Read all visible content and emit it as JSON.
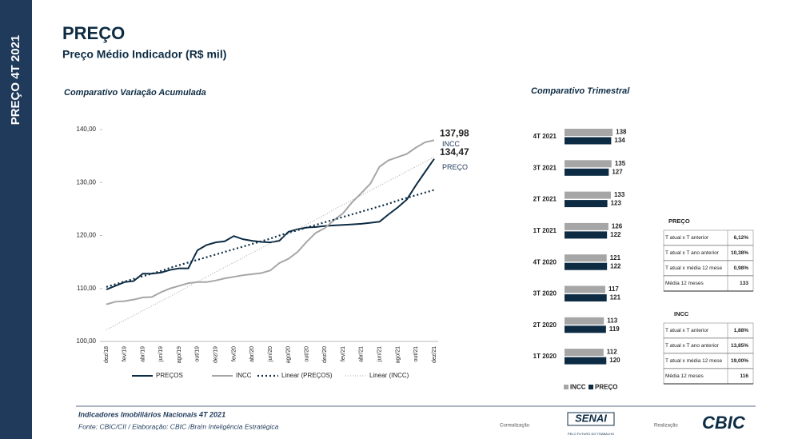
{
  "sidebar": "PREÇO 4T 2021",
  "header": {
    "title": "PREÇO",
    "subtitle": "Preço Médio Indicador (R$ mil)"
  },
  "chart_data": [
    {
      "type": "line",
      "title": "Comparativo Variação Acumulada",
      "categories": [
        "dez/18",
        null,
        "fev/19",
        null,
        "abr/19",
        null,
        "jun/19",
        null,
        "ago/19",
        null,
        "out/19",
        null,
        "dez/19",
        null,
        "fev/20",
        null,
        "abr/20",
        null,
        "jun/20",
        null,
        "ago/20",
        null,
        "out/20",
        null,
        "dez/20",
        null,
        "fev/21",
        null,
        "abr/21",
        null,
        "jun/21",
        null,
        "ago/21",
        null,
        "out/21",
        null,
        "dez/21"
      ],
      "ylim": [
        100,
        140
      ],
      "yticks": [
        {
          "value": 100,
          "label": "100,00"
        },
        {
          "value": 110,
          "label": "110,00"
        },
        {
          "value": 120,
          "label": "120,00"
        },
        {
          "value": 130,
          "label": "130,00"
        },
        {
          "value": 140,
          "label": "140,00"
        }
      ],
      "series": [
        {
          "name": "PREÇOS",
          "color": "#0d2c44",
          "style": "solid",
          "end_label": "PREÇO",
          "values": [
            109.8,
            110.5,
            111.2,
            111.4,
            112.8,
            112.8,
            113.0,
            113.5,
            113.8,
            113.8,
            117.2,
            118.2,
            118.7,
            118.9,
            119.9,
            119.3,
            119.0,
            118.8,
            118.7,
            119.0,
            120.7,
            121.2,
            121.5,
            121.6,
            121.8,
            121.9,
            122.0,
            122.1,
            122.2,
            122.4,
            122.6,
            124.0,
            125.3,
            126.8,
            129.5,
            132.0,
            134.47
          ],
          "value_labels": [
            null,
            null,
            null,
            null,
            null,
            null,
            null,
            null,
            null,
            null,
            null,
            null,
            null,
            null,
            null,
            null,
            null,
            null,
            null,
            null,
            null,
            null,
            null,
            null,
            null,
            null,
            null,
            null,
            null,
            null,
            null,
            null,
            null,
            null,
            null,
            null,
            "134,47"
          ]
        },
        {
          "name": "INCC",
          "color": "#a6a6a6",
          "style": "solid",
          "end_label": "INCC",
          "values": [
            107.0,
            107.5,
            107.6,
            107.9,
            108.3,
            108.4,
            109.3,
            110.0,
            110.5,
            111.0,
            111.2,
            111.2,
            111.5,
            111.9,
            112.2,
            112.5,
            112.7,
            112.9,
            113.4,
            114.8,
            115.6,
            116.9,
            118.8,
            120.5,
            121.4,
            122.9,
            124.2,
            126.3,
            128.0,
            129.8,
            133.0,
            134.2,
            134.8,
            135.4,
            136.6,
            137.6,
            137.98
          ],
          "value_labels": [
            null,
            null,
            null,
            null,
            null,
            null,
            null,
            null,
            null,
            null,
            null,
            null,
            null,
            null,
            null,
            null,
            null,
            null,
            null,
            null,
            null,
            null,
            null,
            null,
            null,
            null,
            null,
            null,
            null,
            null,
            null,
            null,
            null,
            null,
            null,
            null,
            "137,98"
          ]
        },
        {
          "name": "Linear (PREÇOS)",
          "color": "#0d2c44",
          "style": "dotted",
          "values": [
            110.3,
            110.8,
            111.3,
            111.8,
            112.3,
            112.8,
            113.3,
            113.9,
            114.4,
            114.9,
            115.4,
            115.9,
            116.4,
            116.9,
            117.4,
            117.9,
            118.4,
            118.9,
            119.4,
            120.0,
            120.5,
            121.0,
            121.5,
            122.0,
            122.5,
            123.0,
            123.5,
            124.0,
            124.5,
            125.0,
            125.5,
            126.0,
            126.6,
            127.1,
            127.6,
            128.1,
            128.6
          ]
        },
        {
          "name": "Linear (INCC)",
          "color": "#a6a6a6",
          "style": "thin-dotted",
          "values": [
            102.2,
            103.1,
            104.0,
            104.9,
            105.8,
            106.7,
            107.6,
            108.5,
            109.4,
            110.4,
            111.3,
            112.2,
            113.1,
            114.0,
            114.9,
            115.8,
            116.7,
            117.6,
            118.5,
            119.4,
            120.3,
            121.2,
            122.1,
            123.0,
            123.9,
            124.9,
            125.8,
            126.7,
            127.6,
            128.5,
            129.4,
            130.3,
            131.2,
            132.1,
            133.0,
            133.9,
            134.8
          ]
        }
      ]
    },
    {
      "type": "bar",
      "orientation": "horizontal",
      "title": "Comparativo Trimestral",
      "categories": [
        "4T 2021",
        "3T 2021",
        "2T 2021",
        "1T 2021",
        "4T 2020",
        "3T 2020",
        "2T 2020",
        "1T 2020"
      ],
      "xlim": [
        0,
        140
      ],
      "series": [
        {
          "name": "INCC",
          "color": "#a6a6a6",
          "values": [
            138,
            135,
            133,
            126,
            121,
            117,
            113,
            112
          ]
        },
        {
          "name": "PREÇO",
          "color": "#0d2c44",
          "values": [
            134,
            127,
            123,
            122,
            122,
            121,
            119,
            120
          ]
        }
      ]
    }
  ],
  "tables": [
    {
      "title": "PREÇO",
      "rows": [
        [
          "T atual x T anterior",
          "6,12%"
        ],
        [
          "T atual x T ano anterior",
          "10,38%"
        ],
        [
          "T atual x média 12 mese",
          "0,98%"
        ],
        [
          "Média 12 meses",
          "133"
        ]
      ]
    },
    {
      "title": "INCC",
      "rows": [
        [
          "T atual x T anterior",
          "1,88%"
        ],
        [
          "T atual x T ano anterior",
          "13,85%"
        ],
        [
          "T atual x média 12 mese",
          "19,00%"
        ],
        [
          "Média 12 meses",
          "116"
        ]
      ]
    }
  ],
  "footer": {
    "title": "Indicadores Imobiliários Nacionais 4T 2021",
    "source": "Fonte: CBIC/CII / Elaboração: CBIC /Bra!n Inteligência Estratégica",
    "corealization": "Correalização",
    "senai": "SENAI",
    "senai_tagline": "PELO FUTURO DO TRABALHO",
    "realization": "Realização",
    "cbic": "CBIC"
  }
}
